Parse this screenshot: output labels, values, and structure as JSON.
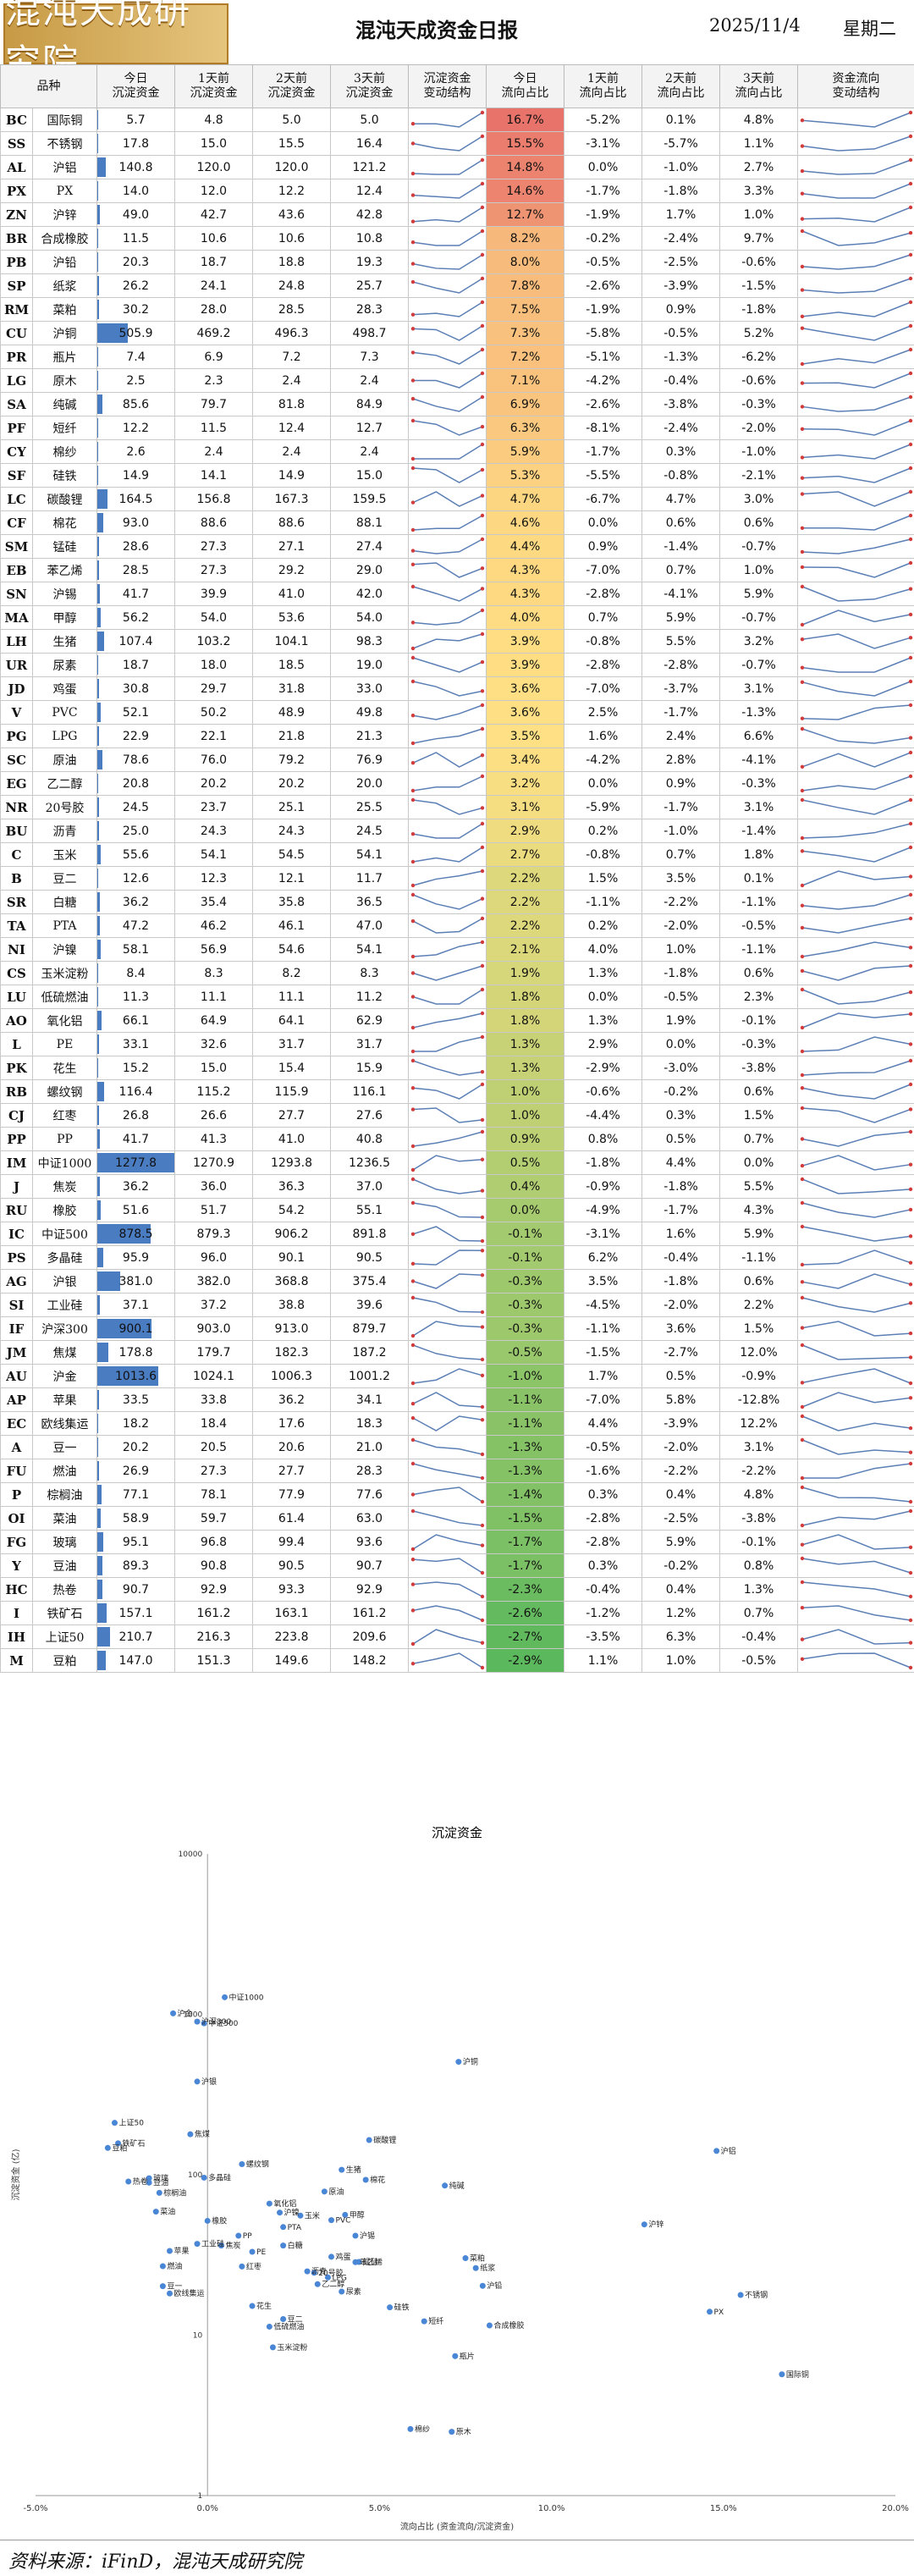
{
  "header": {
    "logo_text": "混沌天成研究院",
    "title": "混沌天成资金日报",
    "date": "2025/11/4",
    "weekday": "星期二"
  },
  "columns": [
    "品种",
    "今日\n沉淀资金",
    "1天前\n沉淀资金",
    "2天前\n沉淀资金",
    "3天前\n沉淀资金",
    "沉淀资金\n变动结构",
    "今日\n流向占比",
    "1天前\n流向占比",
    "2天前\n流向占比",
    "3天前\n流向占比",
    "资金流向\n变动结构"
  ],
  "rows": [
    {
      "code": "BC",
      "name": "国际铜",
      "pos": [
        5.7,
        4.8,
        5.0,
        5.0
      ],
      "flow": [
        "16.7%",
        "-5.2%",
        "0.1%",
        "4.8%"
      ],
      "fv": 16.7
    },
    {
      "code": "SS",
      "name": "不锈钢",
      "pos": [
        17.8,
        15.0,
        15.5,
        16.4
      ],
      "flow": [
        "15.5%",
        "-3.1%",
        "-5.7%",
        "1.1%"
      ],
      "fv": 15.5
    },
    {
      "code": "AL",
      "name": "沪铝",
      "pos": [
        140.8,
        120.0,
        120.0,
        121.2
      ],
      "flow": [
        "14.8%",
        "0.0%",
        "-1.0%",
        "2.7%"
      ],
      "fv": 14.8
    },
    {
      "code": "PX",
      "name": "PX",
      "pos": [
        14.0,
        12.0,
        12.2,
        12.4
      ],
      "flow": [
        "14.6%",
        "-1.7%",
        "-1.8%",
        "3.3%"
      ],
      "fv": 14.6
    },
    {
      "code": "ZN",
      "name": "沪锌",
      "pos": [
        49.0,
        42.7,
        43.6,
        42.8
      ],
      "flow": [
        "12.7%",
        "-1.9%",
        "1.7%",
        "1.0%"
      ],
      "fv": 12.7
    },
    {
      "code": "BR",
      "name": "合成橡胶",
      "pos": [
        11.5,
        10.6,
        10.6,
        10.8
      ],
      "flow": [
        "8.2%",
        "-0.2%",
        "-2.4%",
        "9.7%"
      ],
      "fv": 8.2
    },
    {
      "code": "PB",
      "name": "沪铅",
      "pos": [
        20.3,
        18.7,
        18.8,
        19.3
      ],
      "flow": [
        "8.0%",
        "-0.5%",
        "-2.5%",
        "-0.6%"
      ],
      "fv": 8.0
    },
    {
      "code": "SP",
      "name": "纸浆",
      "pos": [
        26.2,
        24.1,
        24.8,
        25.7
      ],
      "flow": [
        "7.8%",
        "-2.6%",
        "-3.9%",
        "-1.5%"
      ],
      "fv": 7.8
    },
    {
      "code": "RM",
      "name": "菜粕",
      "pos": [
        30.2,
        28.0,
        28.5,
        28.3
      ],
      "flow": [
        "7.5%",
        "-1.9%",
        "0.9%",
        "-1.8%"
      ],
      "fv": 7.5
    },
    {
      "code": "CU",
      "name": "沪铜",
      "pos": [
        505.9,
        469.2,
        496.3,
        498.7
      ],
      "flow": [
        "7.3%",
        "-5.8%",
        "-0.5%",
        "5.2%"
      ],
      "fv": 7.3
    },
    {
      "code": "PR",
      "name": "瓶片",
      "pos": [
        7.4,
        6.9,
        7.2,
        7.3
      ],
      "flow": [
        "7.2%",
        "-5.1%",
        "-1.3%",
        "-6.2%"
      ],
      "fv": 7.2
    },
    {
      "code": "LG",
      "name": "原木",
      "pos": [
        2.5,
        2.3,
        2.4,
        2.4
      ],
      "flow": [
        "7.1%",
        "-4.2%",
        "-0.4%",
        "-0.6%"
      ],
      "fv": 7.1
    },
    {
      "code": "SA",
      "name": "纯碱",
      "pos": [
        85.6,
        79.7,
        81.8,
        84.9
      ],
      "flow": [
        "6.9%",
        "-2.6%",
        "-3.8%",
        "-0.3%"
      ],
      "fv": 6.9
    },
    {
      "code": "PF",
      "name": "短纤",
      "pos": [
        12.2,
        11.5,
        12.4,
        12.7
      ],
      "flow": [
        "6.3%",
        "-8.1%",
        "-2.4%",
        "-2.0%"
      ],
      "fv": 6.3
    },
    {
      "code": "CY",
      "name": "棉纱",
      "pos": [
        2.6,
        2.4,
        2.4,
        2.4
      ],
      "flow": [
        "5.9%",
        "-1.7%",
        "0.3%",
        "-1.0%"
      ],
      "fv": 5.9
    },
    {
      "code": "SF",
      "name": "硅铁",
      "pos": [
        14.9,
        14.1,
        14.9,
        15.0
      ],
      "flow": [
        "5.3%",
        "-5.5%",
        "-0.8%",
        "-2.1%"
      ],
      "fv": 5.3
    },
    {
      "code": "LC",
      "name": "碳酸锂",
      "pos": [
        164.5,
        156.8,
        167.3,
        159.5
      ],
      "flow": [
        "4.7%",
        "-6.7%",
        "4.7%",
        "3.0%"
      ],
      "fv": 4.7
    },
    {
      "code": "CF",
      "name": "棉花",
      "pos": [
        93.0,
        88.6,
        88.6,
        88.1
      ],
      "flow": [
        "4.6%",
        "0.0%",
        "0.6%",
        "0.6%"
      ],
      "fv": 4.6
    },
    {
      "code": "SM",
      "name": "锰硅",
      "pos": [
        28.6,
        27.3,
        27.1,
        27.4
      ],
      "flow": [
        "4.4%",
        "0.9%",
        "-1.4%",
        "-0.7%"
      ],
      "fv": 4.4
    },
    {
      "code": "EB",
      "name": "苯乙烯",
      "pos": [
        28.5,
        27.3,
        29.2,
        29.0
      ],
      "flow": [
        "4.3%",
        "-7.0%",
        "0.7%",
        "1.0%"
      ],
      "fv": 4.3
    },
    {
      "code": "SN",
      "name": "沪锡",
      "pos": [
        41.7,
        39.9,
        41.0,
        42.0
      ],
      "flow": [
        "4.3%",
        "-2.8%",
        "-4.1%",
        "5.9%"
      ],
      "fv": 4.3
    },
    {
      "code": "MA",
      "name": "甲醇",
      "pos": [
        56.2,
        54.0,
        53.6,
        54.0
      ],
      "flow": [
        "4.0%",
        "0.7%",
        "5.9%",
        "-0.7%"
      ],
      "fv": 4.0
    },
    {
      "code": "LH",
      "name": "生猪",
      "pos": [
        107.4,
        103.2,
        104.1,
        98.3
      ],
      "flow": [
        "3.9%",
        "-0.8%",
        "5.5%",
        "3.2%"
      ],
      "fv": 3.9
    },
    {
      "code": "UR",
      "name": "尿素",
      "pos": [
        18.7,
        18.0,
        18.5,
        19.0
      ],
      "flow": [
        "3.9%",
        "-2.8%",
        "-2.8%",
        "-0.7%"
      ],
      "fv": 3.9
    },
    {
      "code": "JD",
      "name": "鸡蛋",
      "pos": [
        30.8,
        29.7,
        31.8,
        33.0
      ],
      "flow": [
        "3.6%",
        "-7.0%",
        "-3.7%",
        "3.1%"
      ],
      "fv": 3.6
    },
    {
      "code": "V",
      "name": "PVC",
      "pos": [
        52.1,
        50.2,
        48.9,
        49.8
      ],
      "flow": [
        "3.6%",
        "2.5%",
        "-1.7%",
        "-1.3%"
      ],
      "fv": 3.6
    },
    {
      "code": "PG",
      "name": "LPG",
      "pos": [
        22.9,
        22.1,
        21.8,
        21.3
      ],
      "flow": [
        "3.5%",
        "1.6%",
        "2.4%",
        "6.6%"
      ],
      "fv": 3.5
    },
    {
      "code": "SC",
      "name": "原油",
      "pos": [
        78.6,
        76.0,
        79.2,
        76.9
      ],
      "flow": [
        "3.4%",
        "-4.2%",
        "2.8%",
        "-4.1%"
      ],
      "fv": 3.4
    },
    {
      "code": "EG",
      "name": "乙二醇",
      "pos": [
        20.8,
        20.2,
        20.2,
        20.0
      ],
      "flow": [
        "3.2%",
        "0.0%",
        "0.9%",
        "-0.3%"
      ],
      "fv": 3.2
    },
    {
      "code": "NR",
      "name": "20号胶",
      "pos": [
        24.5,
        23.7,
        25.1,
        25.5
      ],
      "flow": [
        "3.1%",
        "-5.9%",
        "-1.7%",
        "3.1%"
      ],
      "fv": 3.1
    },
    {
      "code": "BU",
      "name": "沥青",
      "pos": [
        25.0,
        24.3,
        24.3,
        24.5
      ],
      "flow": [
        "2.9%",
        "0.2%",
        "-1.0%",
        "-1.4%"
      ],
      "fv": 2.9
    },
    {
      "code": "C",
      "name": "玉米",
      "pos": [
        55.6,
        54.1,
        54.5,
        54.1
      ],
      "flow": [
        "2.7%",
        "-0.8%",
        "0.7%",
        "1.8%"
      ],
      "fv": 2.7
    },
    {
      "code": "B",
      "name": "豆二",
      "pos": [
        12.6,
        12.3,
        12.1,
        11.7
      ],
      "flow": [
        "2.2%",
        "1.5%",
        "3.5%",
        "0.1%"
      ],
      "fv": 2.2
    },
    {
      "code": "SR",
      "name": "白糖",
      "pos": [
        36.2,
        35.4,
        35.8,
        36.5
      ],
      "flow": [
        "2.2%",
        "-1.1%",
        "-2.2%",
        "-1.1%"
      ],
      "fv": 2.2
    },
    {
      "code": "TA",
      "name": "PTA",
      "pos": [
        47.2,
        46.2,
        46.1,
        47.0
      ],
      "flow": [
        "2.2%",
        "0.2%",
        "-2.0%",
        "-0.5%"
      ],
      "fv": 2.2
    },
    {
      "code": "NI",
      "name": "沪镍",
      "pos": [
        58.1,
        56.9,
        54.6,
        54.1
      ],
      "flow": [
        "2.1%",
        "4.0%",
        "1.0%",
        "-1.1%"
      ],
      "fv": 2.1
    },
    {
      "code": "CS",
      "name": "玉米淀粉",
      "pos": [
        8.4,
        8.3,
        8.2,
        8.3
      ],
      "flow": [
        "1.9%",
        "1.3%",
        "-1.8%",
        "0.6%"
      ],
      "fv": 1.9
    },
    {
      "code": "LU",
      "name": "低硫燃油",
      "pos": [
        11.3,
        11.1,
        11.1,
        11.2
      ],
      "flow": [
        "1.8%",
        "0.0%",
        "-0.5%",
        "2.3%"
      ],
      "fv": 1.8
    },
    {
      "code": "AO",
      "name": "氧化铝",
      "pos": [
        66.1,
        64.9,
        64.1,
        62.9
      ],
      "flow": [
        "1.8%",
        "1.3%",
        "1.9%",
        "-0.1%"
      ],
      "fv": 1.8
    },
    {
      "code": "L",
      "name": "PE",
      "pos": [
        33.1,
        32.6,
        31.7,
        31.7
      ],
      "flow": [
        "1.3%",
        "2.9%",
        "0.0%",
        "-0.3%"
      ],
      "fv": 1.3
    },
    {
      "code": "PK",
      "name": "花生",
      "pos": [
        15.2,
        15.0,
        15.4,
        15.9
      ],
      "flow": [
        "1.3%",
        "-2.9%",
        "-3.0%",
        "-3.8%"
      ],
      "fv": 1.3
    },
    {
      "code": "RB",
      "name": "螺纹钢",
      "pos": [
        116.4,
        115.2,
        115.9,
        116.1
      ],
      "flow": [
        "1.0%",
        "-0.6%",
        "-0.2%",
        "0.6%"
      ],
      "fv": 1.0
    },
    {
      "code": "CJ",
      "name": "红枣",
      "pos": [
        26.8,
        26.6,
        27.7,
        27.6
      ],
      "flow": [
        "1.0%",
        "-4.4%",
        "0.3%",
        "1.5%"
      ],
      "fv": 1.0
    },
    {
      "code": "PP",
      "name": "PP",
      "pos": [
        41.7,
        41.3,
        41.0,
        40.8
      ],
      "flow": [
        "0.9%",
        "0.8%",
        "0.5%",
        "0.7%"
      ],
      "fv": 0.9
    },
    {
      "code": "IM",
      "name": "中证1000",
      "pos": [
        1277.8,
        1270.9,
        1293.8,
        1236.5
      ],
      "flow": [
        "0.5%",
        "-1.8%",
        "4.4%",
        "0.0%"
      ],
      "fv": 0.5
    },
    {
      "code": "J",
      "name": "焦炭",
      "pos": [
        36.2,
        36.0,
        36.3,
        37.0
      ],
      "flow": [
        "0.4%",
        "-0.9%",
        "-1.8%",
        "5.5%"
      ],
      "fv": 0.4
    },
    {
      "code": "RU",
      "name": "橡胶",
      "pos": [
        51.6,
        51.7,
        54.2,
        55.1
      ],
      "flow": [
        "0.0%",
        "-4.9%",
        "-1.7%",
        "4.3%"
      ],
      "fv": 0.0
    },
    {
      "code": "IC",
      "name": "中证500",
      "pos": [
        878.5,
        879.3,
        906.2,
        891.8
      ],
      "flow": [
        "-0.1%",
        "-3.1%",
        "1.6%",
        "5.9%"
      ],
      "fv": -0.1
    },
    {
      "code": "PS",
      "name": "多晶硅",
      "pos": [
        95.9,
        96.0,
        90.1,
        90.5
      ],
      "flow": [
        "-0.1%",
        "6.2%",
        "-0.4%",
        "-1.1%"
      ],
      "fv": -0.1
    },
    {
      "code": "AG",
      "name": "沪银",
      "pos": [
        381.0,
        382.0,
        368.8,
        375.4
      ],
      "flow": [
        "-0.3%",
        "3.5%",
        "-1.8%",
        "0.6%"
      ],
      "fv": -0.3
    },
    {
      "code": "SI",
      "name": "工业硅",
      "pos": [
        37.1,
        37.2,
        38.8,
        39.6
      ],
      "flow": [
        "-0.3%",
        "-4.5%",
        "-2.0%",
        "2.2%"
      ],
      "fv": -0.3
    },
    {
      "code": "IF",
      "name": "沪深300",
      "pos": [
        900.1,
        903.0,
        913.0,
        879.7
      ],
      "flow": [
        "-0.3%",
        "-1.1%",
        "3.6%",
        "1.5%"
      ],
      "fv": -0.3
    },
    {
      "code": "JM",
      "name": "焦煤",
      "pos": [
        178.8,
        179.7,
        182.3,
        187.2
      ],
      "flow": [
        "-0.5%",
        "-1.5%",
        "-2.7%",
        "12.0%"
      ],
      "fv": -0.5
    },
    {
      "code": "AU",
      "name": "沪金",
      "pos": [
        1013.6,
        1024.1,
        1006.3,
        1001.2
      ],
      "flow": [
        "-1.0%",
        "1.7%",
        "0.5%",
        "-0.9%"
      ],
      "fv": -1.0
    },
    {
      "code": "AP",
      "name": "苹果",
      "pos": [
        33.5,
        33.8,
        36.2,
        34.1
      ],
      "flow": [
        "-1.1%",
        "-7.0%",
        "5.8%",
        "-12.8%"
      ],
      "fv": -1.1
    },
    {
      "code": "EC",
      "name": "欧线集运",
      "pos": [
        18.2,
        18.4,
        17.6,
        18.3
      ],
      "flow": [
        "-1.1%",
        "4.4%",
        "-3.9%",
        "12.2%"
      ],
      "fv": -1.1
    },
    {
      "code": "A",
      "name": "豆一",
      "pos": [
        20.2,
        20.5,
        20.6,
        21.0
      ],
      "flow": [
        "-1.3%",
        "-0.5%",
        "-2.0%",
        "3.1%"
      ],
      "fv": -1.3
    },
    {
      "code": "FU",
      "name": "燃油",
      "pos": [
        26.9,
        27.3,
        27.7,
        28.3
      ],
      "flow": [
        "-1.3%",
        "-1.6%",
        "-2.2%",
        "-2.2%"
      ],
      "fv": -1.3
    },
    {
      "code": "P",
      "name": "棕榈油",
      "pos": [
        77.1,
        78.1,
        77.9,
        77.6
      ],
      "flow": [
        "-1.4%",
        "0.3%",
        "0.4%",
        "4.8%"
      ],
      "fv": -1.4
    },
    {
      "code": "OI",
      "name": "菜油",
      "pos": [
        58.9,
        59.7,
        61.4,
        63.0
      ],
      "flow": [
        "-1.5%",
        "-2.8%",
        "-2.5%",
        "-3.8%"
      ],
      "fv": -1.5
    },
    {
      "code": "FG",
      "name": "玻璃",
      "pos": [
        95.1,
        96.8,
        99.4,
        93.6
      ],
      "flow": [
        "-1.7%",
        "-2.8%",
        "5.9%",
        "-0.1%"
      ],
      "fv": -1.7
    },
    {
      "code": "Y",
      "name": "豆油",
      "pos": [
        89.3,
        90.8,
        90.5,
        90.7
      ],
      "flow": [
        "-1.7%",
        "0.3%",
        "-0.2%",
        "0.8%"
      ],
      "fv": -1.7
    },
    {
      "code": "HC",
      "name": "热卷",
      "pos": [
        90.7,
        92.9,
        93.3,
        92.9
      ],
      "flow": [
        "-2.3%",
        "-0.4%",
        "0.4%",
        "1.3%"
      ],
      "fv": -2.3
    },
    {
      "code": "I",
      "name": "铁矿石",
      "pos": [
        157.1,
        161.2,
        163.1,
        161.2
      ],
      "flow": [
        "-2.6%",
        "-1.2%",
        "1.2%",
        "0.7%"
      ],
      "fv": -2.6
    },
    {
      "code": "IH",
      "name": "上证50",
      "pos": [
        210.7,
        216.3,
        223.8,
        209.6
      ],
      "flow": [
        "-2.7%",
        "-3.5%",
        "6.3%",
        "-0.4%"
      ],
      "fv": -2.7
    },
    {
      "code": "M",
      "name": "豆粕",
      "pos": [
        147.0,
        151.3,
        149.6,
        148.2
      ],
      "flow": [
        "-2.9%",
        "1.1%",
        "1.0%",
        "-0.5%"
      ],
      "fv": -2.9
    }
  ],
  "colors": {
    "pos_bar": "#4a7cc2",
    "flow_max": "#e8736b",
    "flow_mid": "#ffe084",
    "flow_min": "#5cb85c",
    "mini_line": "#5b7fb5",
    "mini_marker": "#d23b3b",
    "scatter_point": "#4a86d6"
  },
  "chart_data": {
    "type": "scatter",
    "title": "沉淀资金",
    "xlabel": "流向占比 (资金流向/沉淀资金)",
    "ylabel": "沉淀资金 (亿)",
    "x_ticks": [
      "-5.0%",
      "0.0%",
      "5.0%",
      "10.0%",
      "15.0%",
      "20.0%"
    ],
    "y_ticks": [
      "1",
      "10",
      "100",
      "1000",
      "10000"
    ],
    "xlim": [
      -5,
      20
    ],
    "ylim": [
      1,
      10000
    ],
    "y_scale": "log",
    "series": [
      {
        "labels": [
          "国际铜",
          "不锈钢",
          "沪铝",
          "PX",
          "沪锌",
          "合成橡胶",
          "沪铅",
          "纸浆",
          "菜粕",
          "沪铜",
          "瓶片",
          "原木",
          "纯碱",
          "短纤",
          "棉纱",
          "硅铁",
          "碳酸锂",
          "棉花",
          "锰硅",
          "苯乙烯",
          "沪锡",
          "甲醇",
          "生猪",
          "尿素",
          "鸡蛋",
          "PVC",
          "LPG",
          "原油",
          "乙二醇",
          "20号胶",
          "沥青",
          "玉米",
          "豆二",
          "白糖",
          "PTA",
          "沪镍",
          "玉米淀粉",
          "低硫燃油",
          "氧化铝",
          "PE",
          "花生",
          "螺纹钢",
          "红枣",
          "PP",
          "中证1000",
          "焦炭",
          "橡胶",
          "中证500",
          "多晶硅",
          "沪银",
          "工业硅",
          "沪深300",
          "焦煤",
          "沪金",
          "苹果",
          "欧线集运",
          "豆一",
          "燃油",
          "棕榈油",
          "菜油",
          "玻璃",
          "豆油",
          "热卷",
          "铁矿石",
          "上证50",
          "豆粕"
        ]
      }
    ]
  },
  "footer": "资料来源：iFinD，混沌天成研究院"
}
